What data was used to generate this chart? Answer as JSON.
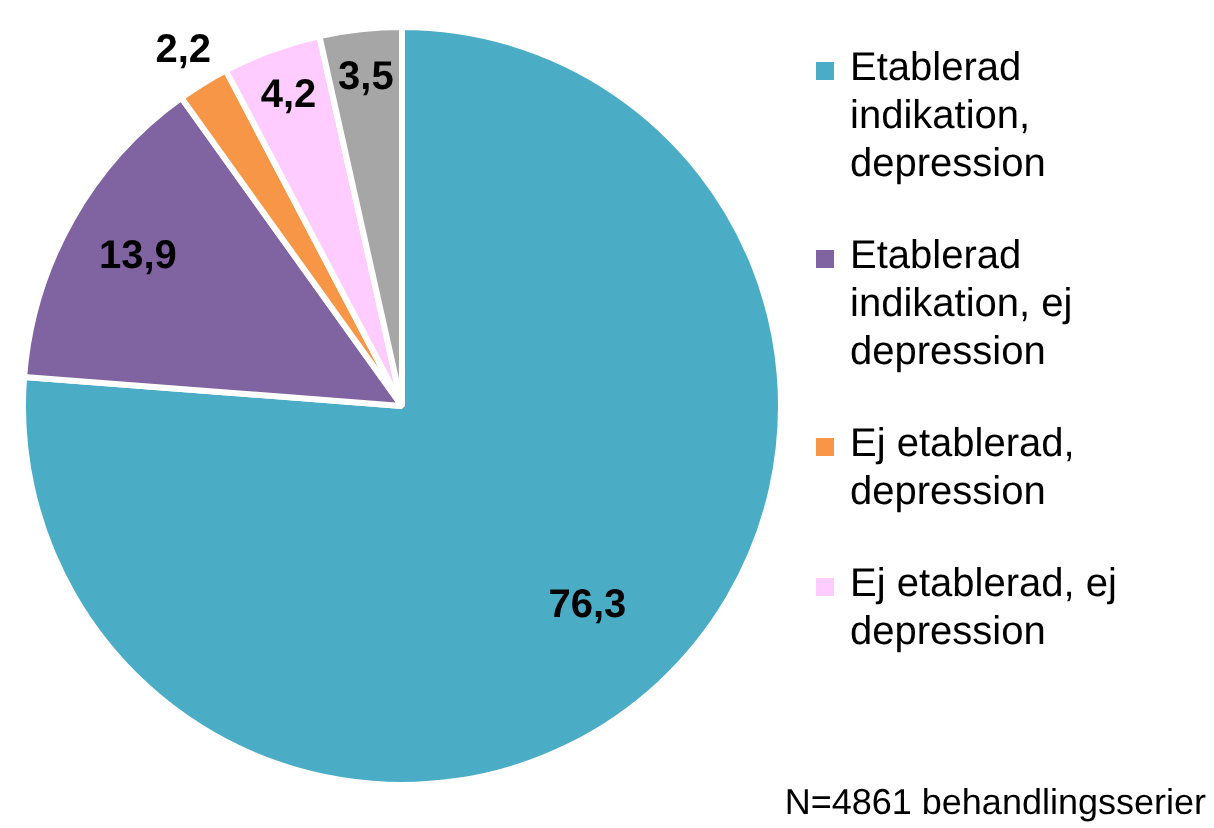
{
  "chart_data": {
    "type": "pie",
    "categories": [
      "Etablerad indikation, depression",
      "Etablerad indikation, ej depression",
      "Ej etablerad, depression",
      "Ej etablerad, ej depression",
      null
    ],
    "values": [
      76.3,
      13.9,
      2.2,
      4.2,
      3.5
    ],
    "value_labels": [
      "76,3",
      "13,9",
      "2,2",
      "4,2",
      "3,5"
    ],
    "colors": [
      "#4bacc6",
      "#8064a2",
      "#f79646",
      "#ffccff",
      "#a6a6a6"
    ],
    "legend": "right",
    "annotations": [
      "N=4861 behandlingsserier"
    ]
  }
}
